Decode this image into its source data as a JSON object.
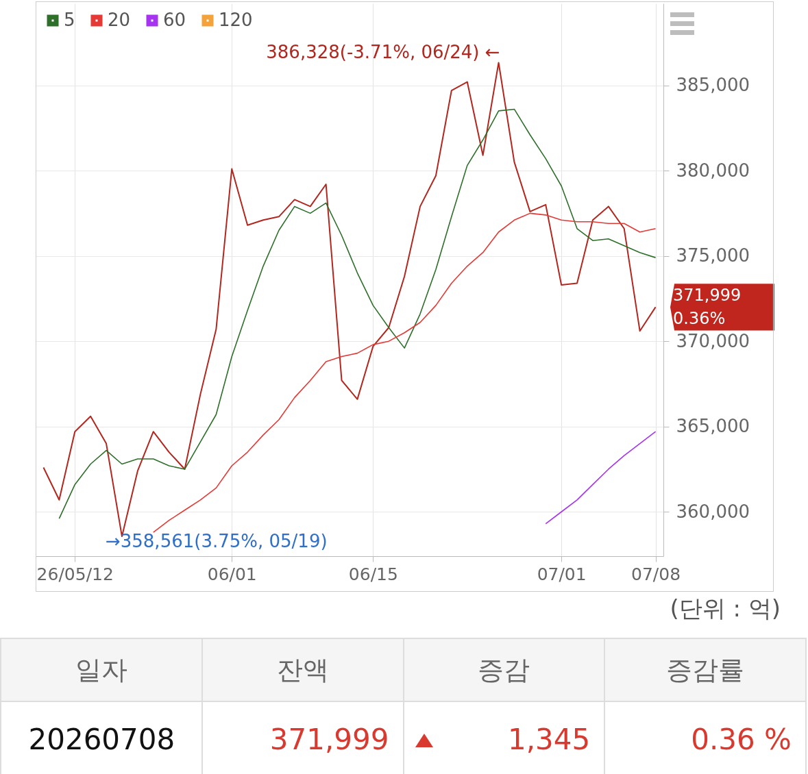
{
  "chart_data": [
    {
      "type": "line",
      "categories": [
        null,
        null,
        "26/05/12",
        null,
        null,
        null,
        null,
        null,
        null,
        null,
        null,
        null,
        "06/01",
        null,
        null,
        null,
        null,
        null,
        null,
        null,
        null,
        "06/15",
        null,
        null,
        null,
        null,
        null,
        null,
        null,
        null,
        null,
        null,
        null,
        "07/01",
        null,
        null,
        null,
        null,
        null,
        "07/08"
      ],
      "ylim": [
        357400,
        389800
      ],
      "yticks": [
        {
          "value": 360000,
          "label": "360,000"
        },
        {
          "value": 365000,
          "label": "365,000"
        },
        {
          "value": 370000,
          "label": "370,000"
        },
        {
          "value": 375000,
          "label": "375,000"
        },
        {
          "value": 380000,
          "label": "380,000"
        },
        {
          "value": 385000,
          "label": "385,000"
        }
      ],
      "grid": true,
      "legend": "top left",
      "series": [
        {
          "color": "#b3261e",
          "values": [
            362600,
            360700,
            364700,
            365600,
            364000,
            358561,
            362400,
            364700,
            363500,
            362500,
            366900,
            370700,
            380100,
            376800,
            377100,
            377300,
            378300,
            377900,
            379200,
            367700,
            366600,
            369700,
            370800,
            373800,
            377900,
            379700,
            384700,
            385200,
            380900,
            386328,
            380500,
            377600,
            378000,
            373300,
            373400,
            377100,
            377900,
            376600,
            370600,
            371999
          ]
        },
        {
          "name": "5",
          "color": "#2e6f2a",
          "values": [
            null,
            359600,
            361600,
            362800,
            363600,
            362800,
            363100,
            363100,
            362700,
            362500,
            364100,
            365700,
            369100,
            371800,
            374400,
            376500,
            377900,
            377500,
            378100,
            376200,
            374000,
            372100,
            370800,
            369600,
            371600,
            374200,
            377300,
            380300,
            381800,
            383500,
            383600,
            382100,
            380700,
            379100,
            376600,
            375900,
            376000,
            375600,
            375200,
            374900
          ]
        },
        {
          "name": "20",
          "color": "#e53935",
          "values": [
            null,
            null,
            null,
            null,
            null,
            null,
            null,
            358800,
            359500,
            360100,
            360700,
            361400,
            362700,
            363500,
            364500,
            365400,
            366700,
            367700,
            368800,
            369100,
            369300,
            369800,
            370000,
            370500,
            371100,
            372100,
            373400,
            374400,
            375200,
            376400,
            377100,
            377500,
            377400,
            377100,
            377000,
            377000,
            376900,
            376900,
            376400,
            376600
          ]
        },
        {
          "name": "60",
          "color": "#a533f0",
          "values": [
            null,
            null,
            null,
            null,
            null,
            null,
            null,
            null,
            null,
            null,
            null,
            null,
            null,
            null,
            null,
            null,
            null,
            null,
            null,
            null,
            null,
            null,
            null,
            null,
            null,
            null,
            null,
            null,
            null,
            null,
            null,
            null,
            359300,
            360000,
            360700,
            361600,
            362500,
            363300,
            364000,
            364700
          ]
        },
        {
          "name": "120",
          "color": "#f4a33b",
          "values": [
            null,
            null,
            null,
            null,
            null,
            null,
            null,
            null,
            null,
            null,
            null,
            null,
            null,
            null,
            null,
            null,
            null,
            null,
            null,
            null,
            null,
            null,
            null,
            null,
            null,
            null,
            null,
            null,
            null,
            null,
            null,
            null,
            null,
            null,
            null,
            null,
            null,
            null,
            null,
            null
          ]
        }
      ],
      "annotations": [
        "386,328(-3.71%, 06/24) ←",
        "→358,561(3.75%, 05/19)",
        "371,999",
        "0.36%",
        "(단위 : 억)"
      ]
    },
    {
      "type": "other",
      "categories": [
        "일자",
        "잔액",
        "증감",
        "증감률"
      ],
      "annotations": [
        "20260708",
        "371,999",
        "1,345",
        "0.36 %"
      ]
    }
  ]
}
